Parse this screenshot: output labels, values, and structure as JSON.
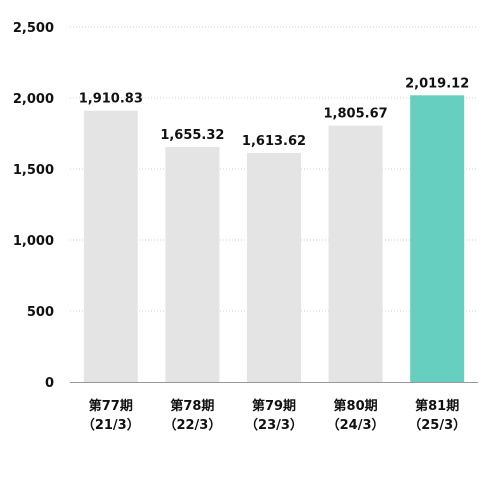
{
  "chart_data": {
    "type": "bar",
    "categories": [
      [
        "第77期",
        "（21/3）"
      ],
      [
        "第78期",
        "（22/3）"
      ],
      [
        "第79期",
        "（23/3）"
      ],
      [
        "第80期",
        "（24/3）"
      ],
      [
        "第81期",
        "（25/3）"
      ]
    ],
    "values": [
      1910.83,
      1655.32,
      1613.62,
      1805.67,
      2019.12
    ],
    "data_labels": [
      "1,910.83",
      "1,655.32",
      "1,613.62",
      "1,805.67",
      "2,019.12"
    ],
    "ylim": [
      0,
      2500
    ],
    "yticks": [
      0,
      500,
      1000,
      1500,
      2000,
      2500
    ],
    "ytick_labels": [
      "0",
      "500",
      "1,000",
      "1,500",
      "2,000",
      "2,500"
    ],
    "grid": "horizontal dotted",
    "colors": {
      "default_bar": "#e4e4e4",
      "highlight_bar": "#66cfc0",
      "grid": "#d0d0d0",
      "axis": "#999999"
    },
    "highlight_index": 4
  }
}
